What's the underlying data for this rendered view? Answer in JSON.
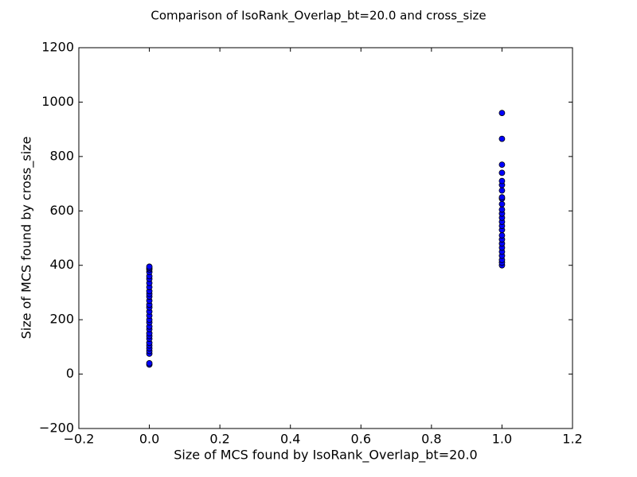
{
  "chart_data": {
    "type": "scatter",
    "title": "Comparison of IsoRank_Overlap_bt=20.0 and cross_size",
    "x_label": "Size of MCS found by IsoRank_Overlap_bt=20.0",
    "y_label": "Size of MCS found by cross_size",
    "x": [
      0,
      0,
      0,
      0,
      0,
      0,
      0,
      0,
      0,
      0,
      0,
      0,
      0,
      0,
      0,
      0,
      0,
      0,
      0,
      0,
      0,
      0,
      0,
      0,
      0,
      0,
      0,
      0,
      0,
      0,
      1,
      1,
      1,
      1,
      1,
      1,
      1,
      1,
      1,
      1,
      1,
      1,
      1,
      1,
      1,
      1,
      1,
      1,
      1,
      1,
      1,
      1,
      1,
      1,
      1
    ],
    "values": [
      35,
      40,
      75,
      85,
      95,
      105,
      115,
      130,
      140,
      150,
      165,
      175,
      190,
      200,
      215,
      230,
      245,
      255,
      270,
      285,
      295,
      305,
      320,
      335,
      350,
      360,
      375,
      385,
      390,
      395,
      400,
      410,
      420,
      435,
      450,
      465,
      480,
      495,
      510,
      530,
      545,
      560,
      575,
      590,
      605,
      625,
      645,
      650,
      675,
      695,
      710,
      740,
      770,
      865,
      960
    ],
    "color": "#0000ff",
    "xlim": [
      -0.2,
      1.2
    ],
    "ylim": [
      -200,
      1200
    ],
    "xticks": [
      {
        "value": -0.2,
        "label": "−0.2"
      },
      {
        "value": 0,
        "label": "0.0"
      },
      0.2,
      0.4,
      0.6,
      0.8,
      {
        "value": 1,
        "label": "1.0"
      },
      1.2
    ],
    "yticks": [
      {
        "value": -200,
        "label": "−200"
      },
      0,
      200,
      400,
      600,
      800,
      1000,
      1200
    ],
    "grid": false
  }
}
